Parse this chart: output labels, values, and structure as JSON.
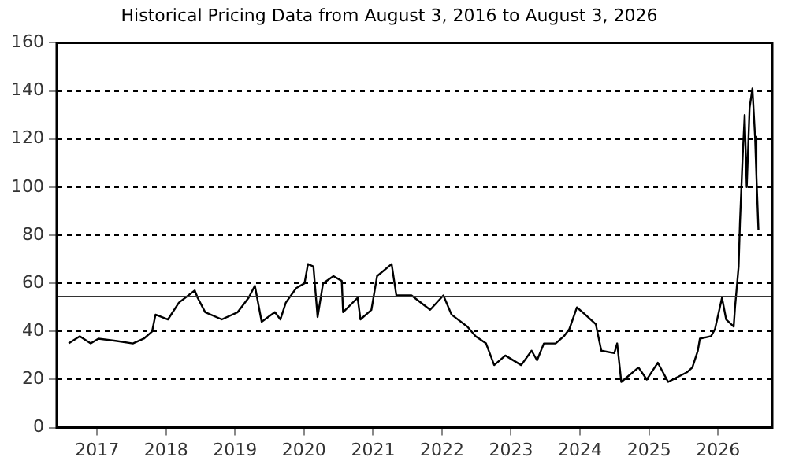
{
  "chart_data": {
    "type": "line",
    "title": "Historical Pricing Data from August 3, 2016 to August 3, 2026",
    "x": [
      "2016-08-03",
      "2016-10-01",
      "2016-11-28",
      "2017-01-08",
      "2017-04-16",
      "2017-07-09",
      "2017-09-05",
      "2017-10-19",
      "2017-11-06",
      "2018-01-11",
      "2018-03-10",
      "2018-06-02",
      "2018-06-17",
      "2018-07-27",
      "2018-10-23",
      "2019-01-15",
      "2019-03-14",
      "2019-04-16",
      "2019-05-22",
      "2019-07-31",
      "2019-08-29",
      "2019-09-27",
      "2019-11-21",
      "2020-01-04",
      "2020-01-22",
      "2020-02-20",
      "2020-03-13",
      "2020-04-11",
      "2020-06-05",
      "2020-07-19",
      "2020-07-26",
      "2020-10-11",
      "2020-10-26",
      "2020-12-23",
      "2021-01-22",
      "2021-04-09",
      "2021-05-04",
      "2021-07-23",
      "2021-10-30",
      "2022-01-08",
      "2022-02-20",
      "2022-05-15",
      "2022-06-28",
      "2022-08-22",
      "2022-10-04",
      "2022-12-02",
      "2023-02-24",
      "2023-04-20",
      "2023-05-19",
      "2023-06-24",
      "2023-08-25",
      "2023-10-08",
      "2023-11-06",
      "2023-12-16",
      "2024-01-29",
      "2024-03-25",
      "2024-04-23",
      "2024-07-01",
      "2024-07-16",
      "2024-08-07",
      "2024-11-06",
      "2024-12-20",
      "2025-02-16",
      "2025-04-12",
      "2025-07-20",
      "2025-08-18",
      "2025-09-16",
      "2025-09-27",
      "2025-11-25",
      "2025-12-16",
      "2026-01-22",
      "2026-02-13",
      "2026-03-25",
      "2026-04-01",
      "2026-04-20",
      "2026-04-27",
      "2026-05-11",
      "2026-05-22",
      "2026-06-02",
      "2026-06-17",
      "2026-07-02",
      "2026-07-16",
      "2026-07-23",
      "2026-08-03"
    ],
    "series": [
      {
        "color": "#000000",
        "values": [
          35,
          38,
          35,
          37,
          36,
          35,
          37,
          40,
          47,
          45,
          52,
          57,
          54,
          48,
          45,
          48,
          54,
          59,
          44,
          48,
          45,
          52,
          58,
          60,
          68,
          67,
          46,
          60,
          63,
          61,
          48,
          54,
          45,
          49,
          63,
          68,
          55,
          55,
          49,
          55,
          47,
          42,
          38,
          35,
          26,
          30,
          26,
          32,
          28,
          35,
          35,
          38,
          41,
          50,
          47,
          43,
          32,
          31,
          35,
          19,
          25,
          20,
          27,
          19,
          23,
          25,
          32,
          37,
          38,
          41,
          54,
          45,
          42,
          50,
          67,
          85,
          112,
          130,
          100,
          133,
          141,
          121,
          105,
          82
        ]
      }
    ],
    "xlim": [
      "2016-06-01",
      "2026-10-15"
    ],
    "xticks": [
      "2017",
      "2018",
      "2019",
      "2020",
      "2021",
      "2022",
      "2023",
      "2024",
      "2025",
      "2026"
    ],
    "ylim": [
      0,
      160
    ],
    "yticks": [
      0,
      20,
      40,
      60,
      80,
      100,
      120,
      140,
      160
    ],
    "grid": "y",
    "line_style": "solid",
    "marker": "none",
    "ref_lines": [
      {
        "axis": "y",
        "value": 54.5,
        "color": "#333333"
      }
    ]
  }
}
